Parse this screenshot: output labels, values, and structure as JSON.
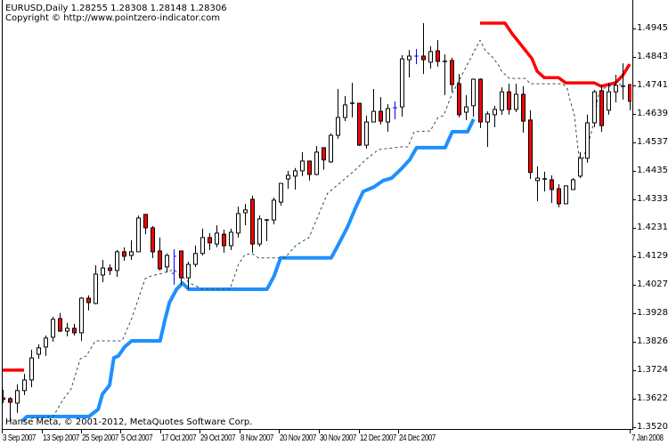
{
  "header": {
    "symbol_line": "EURUSD,Daily  1.28255 1.28308 1.28148 1.28306",
    "copyright_line": "Copyright © http://www.pointzero-indicator.com"
  },
  "footer_credit": "Hanse Meta, © 2001-2012, MetaQuotes Software Corp.",
  "colors": {
    "background": "#FFFFFF",
    "bull_body": "#FFFFFF",
    "bear_body": "#FF0000",
    "candle_outline": "#000000",
    "highlight_bar": "#0000FF",
    "blue_line": "#1E90FF",
    "red_line": "#FF0000",
    "dashed_line": "#2F4F4F"
  },
  "chart_data": {
    "type": "candlestick",
    "symbol": "EURUSD",
    "timeframe": "Daily",
    "ylim": [
      1.352,
      1.5047
    ],
    "grid": false,
    "price_ticks": [
      "1.49450",
      "1.48430",
      "1.47410",
      "1.46390",
      "1.45370",
      "1.44350",
      "1.43330",
      "1.42310",
      "1.41290",
      "1.40270",
      "1.39280",
      "1.38260",
      "1.37240",
      "1.36220",
      "1.35200"
    ],
    "time_ticks": [
      "3 Sep 2007",
      "13 Sep 2007",
      "25 Sep 2007",
      "5 Oct 2007",
      "17 Oct 2007",
      "29 Oct 2007",
      "8 Nov 2007",
      "20 Nov 2007",
      "30 Nov 2007",
      "12 Dec 2007",
      "24 Dec 2007",
      "7 Jan 2008"
    ],
    "ohlc_columns": [
      "open",
      "high",
      "low",
      "close"
    ],
    "candles": [
      [
        1.3622,
        1.3651,
        1.3603,
        1.3616
      ],
      [
        1.3619,
        1.3625,
        1.3539,
        1.3606
      ],
      [
        1.3603,
        1.367,
        1.3568,
        1.3648
      ],
      [
        1.3648,
        1.3708,
        1.3632,
        1.3686
      ],
      [
        1.3686,
        1.3794,
        1.366,
        1.3765
      ],
      [
        1.3778,
        1.3814,
        1.3762,
        1.3801
      ],
      [
        1.3804,
        1.3845,
        1.3772,
        1.3836
      ],
      [
        1.3839,
        1.3912,
        1.3823,
        1.3903
      ],
      [
        1.3906,
        1.3926,
        1.3858,
        1.3861
      ],
      [
        1.3861,
        1.389,
        1.3842,
        1.3871
      ],
      [
        1.3871,
        1.3887,
        1.3845,
        1.3855
      ],
      [
        1.3855,
        1.3983,
        1.3826,
        1.3979
      ],
      [
        1.3979,
        1.3989,
        1.3935,
        1.3963
      ],
      [
        1.396,
        1.4097,
        1.3957,
        1.4065
      ],
      [
        1.4062,
        1.4116,
        1.4036,
        1.4087
      ],
      [
        1.4087,
        1.41,
        1.4062,
        1.4078
      ],
      [
        1.4078,
        1.4151,
        1.4055,
        1.4145
      ],
      [
        1.4145,
        1.4161,
        1.4113,
        1.4129
      ],
      [
        1.4132,
        1.4186,
        1.4116,
        1.4145
      ],
      [
        1.4145,
        1.4275,
        1.4145,
        1.4266
      ],
      [
        1.4279,
        1.4279,
        1.4208,
        1.4231
      ],
      [
        1.4231,
        1.4237,
        1.4123,
        1.4145
      ],
      [
        1.4148,
        1.4196,
        1.4078,
        1.4084
      ],
      [
        1.4091,
        1.4139,
        1.4071,
        1.4132
      ],
      [
        1.4068,
        1.4154,
        1.4027,
        1.4129
      ],
      [
        1.4148,
        1.4148,
        1.4027,
        1.4052
      ],
      [
        1.4052,
        1.411,
        1.4011,
        1.41
      ],
      [
        1.41,
        1.4167,
        1.4091,
        1.4139
      ],
      [
        1.4139,
        1.4228,
        1.4132,
        1.4196
      ],
      [
        1.4196,
        1.4212,
        1.4151,
        1.4177
      ],
      [
        1.4173,
        1.424,
        1.4161,
        1.4212
      ],
      [
        1.4208,
        1.4224,
        1.4142,
        1.4167
      ],
      [
        1.4167,
        1.4228,
        1.4151,
        1.4215
      ],
      [
        1.4212,
        1.4307,
        1.4196,
        1.4282
      ],
      [
        1.4285,
        1.4317,
        1.424,
        1.4295
      ],
      [
        1.4333,
        1.4346,
        1.4142,
        1.4173
      ],
      [
        1.4173,
        1.4275,
        1.4164,
        1.4263
      ],
      [
        1.4259,
        1.4263,
        1.4183,
        1.4259
      ],
      [
        1.4259,
        1.4339,
        1.4243,
        1.433
      ],
      [
        1.4323,
        1.439,
        1.431,
        1.439
      ],
      [
        1.4406,
        1.4435,
        1.4371,
        1.4419
      ],
      [
        1.4416,
        1.4445,
        1.4368,
        1.4435
      ],
      [
        1.4435,
        1.4502,
        1.4416,
        1.447
      ],
      [
        1.447,
        1.447,
        1.44,
        1.4422
      ],
      [
        1.4422,
        1.4524,
        1.4419,
        1.4502
      ],
      [
        1.4518,
        1.4518,
        1.4439,
        1.4474
      ],
      [
        1.4467,
        1.4569,
        1.4464,
        1.4562
      ],
      [
        1.4562,
        1.4728,
        1.455,
        1.4626
      ],
      [
        1.4626,
        1.4703,
        1.4613,
        1.4671
      ],
      [
        1.4677,
        1.475,
        1.4626,
        1.4674
      ],
      [
        1.4677,
        1.4677,
        1.4524,
        1.4527
      ],
      [
        1.4527,
        1.4633,
        1.4515,
        1.461
      ],
      [
        1.461,
        1.4728,
        1.461,
        1.4648
      ],
      [
        1.4648,
        1.4699,
        1.4601,
        1.4613
      ],
      [
        1.461,
        1.4674,
        1.4575,
        1.4658
      ],
      [
        1.4661,
        1.4684,
        1.462,
        1.4661
      ],
      [
        1.4664,
        1.4849,
        1.4629,
        1.4836
      ],
      [
        1.4833,
        1.4868,
        1.4769,
        1.4846
      ],
      [
        1.4846,
        1.4871,
        1.4817,
        1.4846
      ],
      [
        1.4846,
        1.4964,
        1.4782,
        1.4833
      ],
      [
        1.4824,
        1.4881,
        1.4801,
        1.4862
      ],
      [
        1.4865,
        1.4903,
        1.4808,
        1.4827
      ],
      [
        1.4827,
        1.4852,
        1.4706,
        1.4827
      ],
      [
        1.483,
        1.484,
        1.4718,
        1.4744
      ],
      [
        1.4747,
        1.4782,
        1.4626,
        1.4636
      ],
      [
        1.4645,
        1.4706,
        1.4617,
        1.4664
      ],
      [
        1.4668,
        1.4766,
        1.4629,
        1.4763
      ],
      [
        1.4763,
        1.4766,
        1.4588,
        1.461
      ],
      [
        1.461,
        1.4648,
        1.4521,
        1.4639
      ],
      [
        1.4636,
        1.4668,
        1.4591,
        1.4655
      ],
      [
        1.4652,
        1.4734,
        1.4636,
        1.4718
      ],
      [
        1.4718,
        1.4747,
        1.4636,
        1.4655
      ],
      [
        1.4655,
        1.4747,
        1.4645,
        1.4709
      ],
      [
        1.4709,
        1.4738,
        1.4572,
        1.4613
      ],
      [
        1.4617,
        1.4652,
        1.4406,
        1.4429
      ],
      [
        1.44,
        1.4451,
        1.4326,
        1.4409
      ],
      [
        1.4406,
        1.4432,
        1.4361,
        1.4406
      ],
      [
        1.4403,
        1.4419,
        1.432,
        1.4368
      ],
      [
        1.4371,
        1.4387,
        1.4304,
        1.4317
      ],
      [
        1.4317,
        1.4381,
        1.4317,
        1.4381
      ],
      [
        1.4368,
        1.4409,
        1.4368,
        1.4403
      ],
      [
        1.4416,
        1.4502,
        1.4409,
        1.448
      ],
      [
        1.448,
        1.4636,
        1.4464,
        1.4607
      ],
      [
        1.4607,
        1.4725,
        1.4591,
        1.4718
      ],
      [
        1.4722,
        1.4744,
        1.4575,
        1.4597
      ],
      [
        1.4652,
        1.475,
        1.4636,
        1.4718
      ],
      [
        1.4718,
        1.4779,
        1.468,
        1.4741
      ],
      [
        1.4738,
        1.482,
        1.469,
        1.4738
      ],
      [
        1.4744,
        1.4744,
        1.4652,
        1.4684
      ]
    ],
    "highlighted_bars": [
      24,
      55,
      58
    ],
    "lines": [
      {
        "style": "solid-thick",
        "color": "#1E90FF",
        "points": [
          [
            2.75,
            1.3539
          ],
          [
            3.4,
            1.3555
          ],
          [
            12.1,
            1.3555
          ],
          [
            13.4,
            1.3581
          ],
          [
            14,
            1.3635
          ],
          [
            15,
            1.3667
          ],
          [
            15.6,
            1.3765
          ],
          [
            16.25,
            1.3772
          ],
          [
            17.1,
            1.3804
          ],
          [
            18.1,
            1.3826
          ],
          [
            22.1,
            1.3826
          ],
          [
            22.75,
            1.3899
          ],
          [
            23.4,
            1.3963
          ],
          [
            24.4,
            1.4011
          ],
          [
            25.25,
            1.4033
          ],
          [
            26.1,
            1.4011
          ],
          [
            37.1,
            1.4011
          ],
          [
            38.1,
            1.4059
          ],
          [
            39,
            1.4123
          ],
          [
            46.1,
            1.4123
          ],
          [
            47.1,
            1.417
          ],
          [
            48.4,
            1.4234
          ],
          [
            49.6,
            1.4307
          ],
          [
            50.6,
            1.4361
          ],
          [
            52.1,
            1.4377
          ],
          [
            53.4,
            1.44
          ],
          [
            54.6,
            1.4409
          ],
          [
            55.9,
            1.4441
          ],
          [
            57.1,
            1.4474
          ],
          [
            58.1,
            1.4518
          ],
          [
            62.1,
            1.4518
          ],
          [
            63.1,
            1.4575
          ],
          [
            65.25,
            1.4575
          ],
          [
            66.1,
            1.462
          ]
        ]
      },
      {
        "style": "solid-thick",
        "color": "#FF0000",
        "points": [
          [
            0,
            1.3721
          ],
          [
            3,
            1.3721
          ]
        ]
      },
      {
        "style": "solid-thick",
        "color": "#FF0000",
        "points": [
          [
            67,
            1.4964
          ],
          [
            70.5,
            1.4964
          ],
          [
            71.5,
            1.4926
          ],
          [
            72.5,
            1.4894
          ],
          [
            73.4,
            1.4865
          ],
          [
            74.3,
            1.4836
          ],
          [
            75,
            1.4792
          ],
          [
            76,
            1.4769
          ],
          [
            78,
            1.4769
          ],
          [
            79,
            1.475
          ],
          [
            83,
            1.475
          ],
          [
            84,
            1.4738
          ],
          [
            85,
            1.4744
          ],
          [
            86,
            1.475
          ],
          [
            87,
            1.4776
          ],
          [
            88,
            1.4817
          ]
        ]
      },
      {
        "style": "dashed",
        "color": "#2F4F4F",
        "points": [
          [
            4,
            1.3549
          ],
          [
            7.1,
            1.3555
          ],
          [
            8.4,
            1.3613
          ],
          [
            9.6,
            1.3654
          ],
          [
            10.9,
            1.3762
          ],
          [
            11.75,
            1.3772
          ],
          [
            13,
            1.3826
          ],
          [
            16.75,
            1.3826
          ],
          [
            18,
            1.3899
          ],
          [
            18.75,
            1.3954
          ],
          [
            20,
            1.4049
          ],
          [
            20.9,
            1.4059
          ],
          [
            22.4,
            1.4068
          ],
          [
            24,
            1.4081
          ],
          [
            26.25,
            1.4033
          ],
          [
            28.1,
            1.4011
          ],
          [
            31.9,
            1.4011
          ],
          [
            33.1,
            1.41
          ],
          [
            34,
            1.4135
          ],
          [
            35,
            1.4139
          ],
          [
            35.9,
            1.4123
          ],
          [
            39.6,
            1.4123
          ],
          [
            41.25,
            1.417
          ],
          [
            43,
            1.4196
          ],
          [
            45.6,
            1.4355
          ],
          [
            47.75,
            1.44
          ],
          [
            49.6,
            1.4441
          ],
          [
            50.9,
            1.4474
          ],
          [
            52.75,
            1.4511
          ],
          [
            55.9,
            1.4521
          ],
          [
            56.9,
            1.4521
          ],
          [
            57.75,
            1.4575
          ],
          [
            60,
            1.4578
          ],
          [
            61.1,
            1.4626
          ],
          [
            61.9,
            1.4633
          ],
          [
            62.5,
            1.4674
          ],
          [
            63.1,
            1.4712
          ],
          [
            67,
            1.4903
          ],
          [
            67.75,
            1.4865
          ],
          [
            68.6,
            1.4846
          ],
          [
            69.6,
            1.4814
          ],
          [
            70,
            1.4792
          ],
          [
            71.1,
            1.4766
          ],
          [
            73.4,
            1.4766
          ],
          [
            74,
            1.4747
          ],
          [
            78.6,
            1.4747
          ],
          [
            79.25,
            1.4728
          ],
          [
            79.6,
            1.469
          ],
          [
            80.25,
            1.4633
          ],
          [
            80.6,
            1.4546
          ],
          [
            80.9,
            1.448
          ],
          [
            81.5,
            1.448
          ],
          [
            82.4,
            1.4553
          ],
          [
            83,
            1.461
          ],
          [
            83.6,
            1.4706
          ],
          [
            84.1,
            1.4728
          ],
          [
            85.9,
            1.4744
          ],
          [
            87.1,
            1.4744
          ]
        ]
      }
    ]
  }
}
